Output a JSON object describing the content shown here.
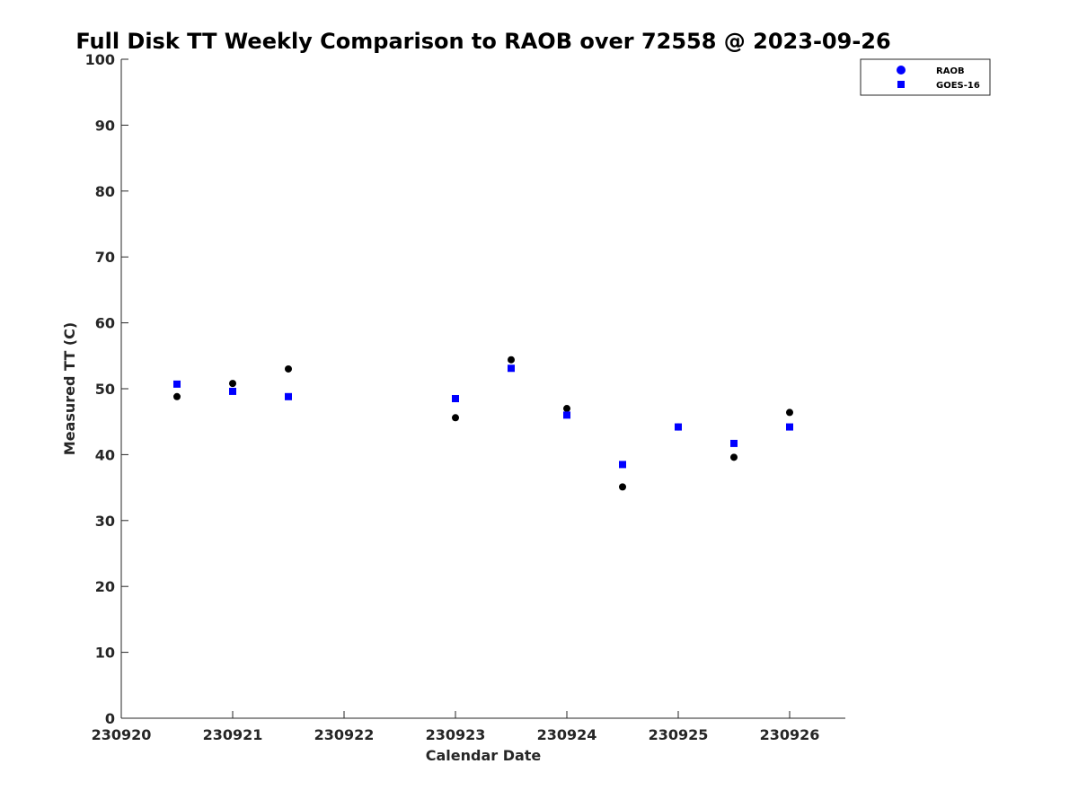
{
  "chart_data": {
    "type": "scatter",
    "title": "Full Disk TT Weekly Comparison to RAOB over 72558 @ 2023-09-26",
    "xlabel": "Calendar Date",
    "ylabel": "Measured TT (C)",
    "xlim": [
      "230920",
      "230926.5"
    ],
    "ylim": [
      0,
      100
    ],
    "x_ticks": [
      "230920",
      "230921",
      "230922",
      "230923",
      "230924",
      "230925",
      "230926"
    ],
    "y_ticks": [
      "0",
      "10",
      "20",
      "30",
      "40",
      "50",
      "60",
      "70",
      "80",
      "90",
      "100"
    ],
    "grid": false,
    "legend_position": "top-right",
    "series": [
      {
        "name": "RAOB",
        "marker": "circle",
        "color": "#000000",
        "legend_color": "#0000ff",
        "points": [
          {
            "x": 230920.5,
            "y": 48.8
          },
          {
            "x": 230921.0,
            "y": 50.8
          },
          {
            "x": 230921.5,
            "y": 53.0
          },
          {
            "x": 230923.0,
            "y": 45.6
          },
          {
            "x": 230923.5,
            "y": 54.4
          },
          {
            "x": 230924.0,
            "y": 47.0
          },
          {
            "x": 230924.5,
            "y": 35.1
          },
          {
            "x": 230925.0,
            "y": 44.2
          },
          {
            "x": 230925.5,
            "y": 39.6
          },
          {
            "x": 230926.0,
            "y": 46.4
          }
        ]
      },
      {
        "name": "GOES-16",
        "marker": "square",
        "color": "#0000ff",
        "legend_color": "#0000ff",
        "points": [
          {
            "x": 230920.5,
            "y": 50.7
          },
          {
            "x": 230921.0,
            "y": 49.6
          },
          {
            "x": 230921.5,
            "y": 48.8
          },
          {
            "x": 230923.0,
            "y": 48.5
          },
          {
            "x": 230923.5,
            "y": 53.1
          },
          {
            "x": 230924.0,
            "y": 46.0
          },
          {
            "x": 230924.5,
            "y": 38.5
          },
          {
            "x": 230925.0,
            "y": 44.2
          },
          {
            "x": 230925.5,
            "y": 41.7
          },
          {
            "x": 230926.0,
            "y": 44.2
          }
        ]
      }
    ]
  }
}
